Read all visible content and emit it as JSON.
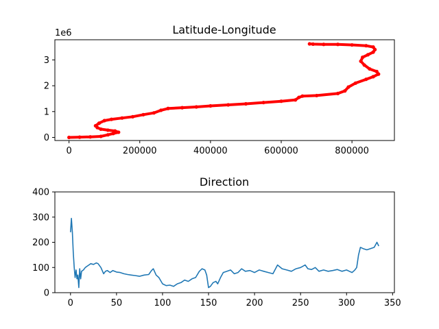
{
  "chart_data": [
    {
      "type": "scatter",
      "title": "Latitude-Longitude",
      "xlabel": "",
      "ylabel": "",
      "y_offset_label": "1e6",
      "xlim": [
        -40000,
        920000
      ],
      "ylim": [
        -0.12,
        3.78
      ],
      "xticks": [
        0,
        200000,
        400000,
        600000,
        800000
      ],
      "xtick_labels": [
        "0",
        "200000",
        "400000",
        "600000",
        "800000"
      ],
      "yticks": [
        0,
        1,
        2,
        3
      ],
      "ytick_labels": [
        "0",
        "1",
        "2",
        "3"
      ],
      "grid": false,
      "color": "#ff0000",
      "x": [
        0,
        30000,
        60000,
        90000,
        110000,
        125000,
        140000,
        130000,
        110000,
        90000,
        80000,
        75000,
        85000,
        100000,
        120000,
        150000,
        180000,
        210000,
        240000,
        260000,
        280000,
        320000,
        360000,
        400000,
        450000,
        500000,
        550000,
        600000,
        640000,
        650000,
        660000,
        700000,
        760000,
        780000,
        790000,
        810000,
        840000,
        860000,
        875000,
        870000,
        850000,
        835000,
        825000,
        830000,
        845000,
        860000,
        865000,
        860000,
        840000,
        800000,
        760000,
        720000,
        690000,
        680000
      ],
      "y": [
        0.0,
        0.01,
        0.02,
        0.04,
        0.1,
        0.15,
        0.2,
        0.25,
        0.28,
        0.32,
        0.38,
        0.45,
        0.55,
        0.65,
        0.7,
        0.75,
        0.8,
        0.88,
        0.95,
        1.05,
        1.12,
        1.15,
        1.18,
        1.22,
        1.26,
        1.3,
        1.35,
        1.4,
        1.45,
        1.55,
        1.6,
        1.62,
        1.7,
        1.8,
        1.95,
        2.1,
        2.25,
        2.35,
        2.45,
        2.55,
        2.65,
        2.8,
        2.95,
        3.1,
        3.2,
        3.3,
        3.4,
        3.5,
        3.55,
        3.58,
        3.6,
        3.6,
        3.61,
        3.62
      ]
    },
    {
      "type": "line",
      "title": "Direction",
      "xlabel": "",
      "ylabel": "",
      "xlim": [
        -17,
        352
      ],
      "ylim": [
        0,
        400
      ],
      "xticks": [
        0,
        50,
        100,
        150,
        200,
        250,
        300,
        350
      ],
      "xtick_labels": [
        "0",
        "50",
        "100",
        "150",
        "200",
        "250",
        "300",
        "350"
      ],
      "yticks": [
        0,
        100,
        200,
        300,
        400
      ],
      "ytick_labels": [
        "0",
        "100",
        "200",
        "300",
        "400"
      ],
      "grid": false,
      "color": "#1f77b4",
      "x": [
        0,
        1,
        2,
        3,
        4,
        5,
        6,
        7,
        8,
        9,
        10,
        11,
        12,
        14,
        16,
        18,
        20,
        22,
        25,
        28,
        30,
        33,
        36,
        38,
        40,
        43,
        46,
        50,
        54,
        58,
        62,
        66,
        70,
        75,
        80,
        85,
        88,
        90,
        93,
        96,
        100,
        104,
        108,
        112,
        116,
        120,
        124,
        128,
        132,
        136,
        140,
        143,
        146,
        148,
        150,
        152,
        155,
        158,
        160,
        163,
        166,
        170,
        174,
        178,
        182,
        186,
        190,
        195,
        200,
        205,
        210,
        215,
        220,
        225,
        230,
        235,
        240,
        245,
        250,
        255,
        258,
        262,
        266,
        270,
        275,
        280,
        285,
        290,
        295,
        300,
        303,
        306,
        309,
        311,
        313,
        315,
        318,
        322,
        326,
        330,
        333,
        335
      ],
      "y": [
        240,
        295,
        240,
        160,
        100,
        60,
        90,
        55,
        70,
        20,
        95,
        55,
        85,
        90,
        100,
        105,
        110,
        115,
        112,
        118,
        115,
        100,
        75,
        85,
        88,
        80,
        88,
        82,
        80,
        75,
        72,
        70,
        68,
        65,
        70,
        72,
        88,
        95,
        70,
        60,
        35,
        28,
        30,
        25,
        35,
        40,
        50,
        45,
        55,
        60,
        85,
        95,
        90,
        70,
        20,
        25,
        40,
        45,
        35,
        60,
        80,
        85,
        90,
        75,
        80,
        95,
        85,
        88,
        80,
        90,
        85,
        80,
        75,
        110,
        95,
        90,
        85,
        95,
        100,
        110,
        95,
        92,
        100,
        85,
        90,
        85,
        88,
        92,
        85,
        90,
        85,
        80,
        90,
        100,
        150,
        180,
        175,
        170,
        175,
        180,
        200,
        185
      ]
    }
  ]
}
